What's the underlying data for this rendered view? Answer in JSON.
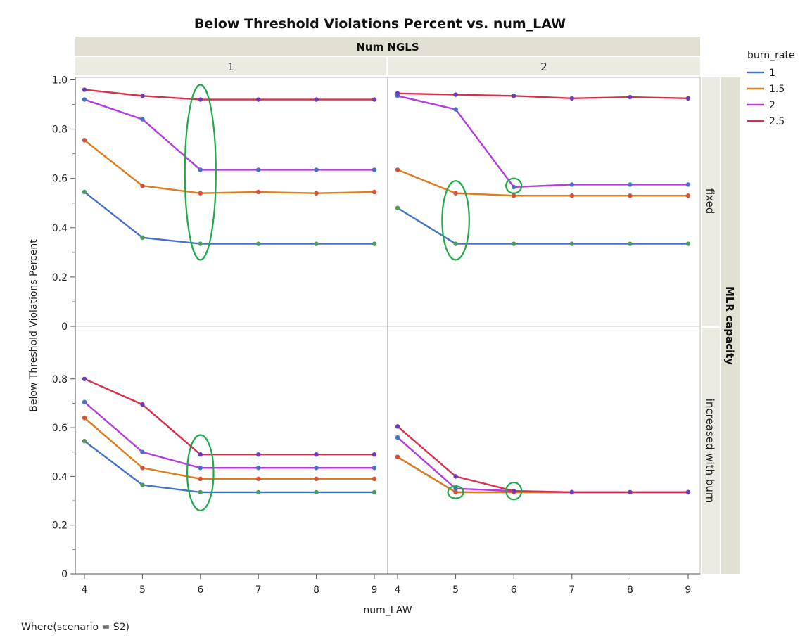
{
  "chart_data": {
    "type": "line",
    "title": "Below Threshold Violations Percent vs. num_LAW",
    "xlabel": "num_LAW",
    "ylabel": "Below Threshold Violations Percent",
    "column_group_label": "Num NGLS",
    "column_levels": [
      "1",
      "2"
    ],
    "row_group_label": "MLR capacity",
    "row_levels": [
      "fixed",
      "increased with burn"
    ],
    "x": [
      4,
      5,
      6,
      7,
      8,
      9
    ],
    "x_ticks": [
      "4",
      "5",
      "6",
      "7",
      "8",
      "9"
    ],
    "y_ticks": [
      "0",
      "0.2",
      "0.4",
      "0.6",
      "0.8",
      "1.0"
    ],
    "y_ticks_lower": [
      "0",
      "0.2",
      "0.4",
      "0.6",
      "0.8"
    ],
    "ylim": [
      0,
      1.0
    ],
    "legend_title": "burn_rate",
    "legend_position": "top-right",
    "grid": false,
    "where_note": "Where(scenario = S2)",
    "series_meta": [
      {
        "name": "1",
        "color": "#4472C4"
      },
      {
        "name": "1.5",
        "color": "#E07B1A"
      },
      {
        "name": "2",
        "color": "#B43BE0"
      },
      {
        "name": "2.5",
        "color": "#D9304A"
      }
    ],
    "panels": [
      {
        "col": 0,
        "row": 0,
        "series": [
          {
            "name": "1",
            "values": [
              0.545,
              0.36,
              0.335,
              0.335,
              0.335,
              0.335
            ]
          },
          {
            "name": "1.5",
            "values": [
              0.755,
              0.57,
              0.54,
              0.545,
              0.54,
              0.545
            ]
          },
          {
            "name": "2",
            "values": [
              0.92,
              0.84,
              0.635,
              0.635,
              0.635,
              0.635
            ]
          },
          {
            "name": "2.5",
            "values": [
              0.96,
              0.935,
              0.92,
              0.92,
              0.92,
              0.92
            ]
          }
        ],
        "highlights": [
          {
            "x": 6,
            "y_low": 0.27,
            "y_high": 0.98
          }
        ]
      },
      {
        "col": 1,
        "row": 0,
        "series": [
          {
            "name": "1",
            "values": [
              0.48,
              0.335,
              0.335,
              0.335,
              0.335,
              0.335
            ]
          },
          {
            "name": "1.5",
            "values": [
              0.635,
              0.54,
              0.53,
              0.53,
              0.53,
              0.53
            ]
          },
          {
            "name": "2",
            "values": [
              0.935,
              0.88,
              0.565,
              0.575,
              0.575,
              0.575
            ]
          },
          {
            "name": "2.5",
            "values": [
              0.945,
              0.94,
              0.935,
              0.925,
              0.93,
              0.925
            ]
          }
        ],
        "highlights": [
          {
            "x": 5,
            "y_low": 0.27,
            "y_high": 0.59
          },
          {
            "x": 6,
            "y_low": 0.54,
            "y_high": 0.6
          }
        ]
      },
      {
        "col": 0,
        "row": 1,
        "series": [
          {
            "name": "1",
            "values": [
              0.545,
              0.365,
              0.335,
              0.335,
              0.335,
              0.335
            ]
          },
          {
            "name": "1.5",
            "values": [
              0.64,
              0.435,
              0.39,
              0.39,
              0.39,
              0.39
            ]
          },
          {
            "name": "2",
            "values": [
              0.705,
              0.5,
              0.435,
              0.435,
              0.435,
              0.435
            ]
          },
          {
            "name": "2.5",
            "values": [
              0.8,
              0.695,
              0.49,
              0.49,
              0.49,
              0.49
            ]
          }
        ],
        "highlights": [
          {
            "x": 6,
            "y_low": 0.26,
            "y_high": 0.57
          }
        ]
      },
      {
        "col": 1,
        "row": 1,
        "series": [
          {
            "name": "1",
            "values": [
              0.48,
              0.335,
              0.335,
              0.335,
              0.335,
              0.335
            ]
          },
          {
            "name": "1.5",
            "values": [
              0.48,
              0.335,
              0.335,
              0.335,
              0.335,
              0.335
            ]
          },
          {
            "name": "2",
            "values": [
              0.56,
              0.35,
              0.34,
              0.335,
              0.335,
              0.335
            ]
          },
          {
            "name": "2.5",
            "values": [
              0.605,
              0.4,
              0.34,
              0.335,
              0.335,
              0.335
            ]
          }
        ],
        "highlights": [
          {
            "x": 5,
            "y_low": 0.31,
            "y_high": 0.36
          },
          {
            "x": 6,
            "y_low": 0.305,
            "y_high": 0.375
          }
        ]
      }
    ]
  }
}
